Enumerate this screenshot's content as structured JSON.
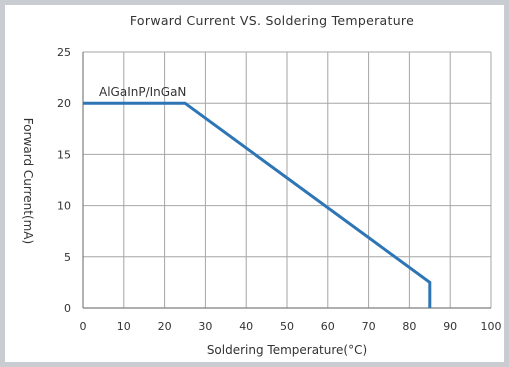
{
  "chart_data": {
    "type": "line",
    "title": "Forward Current VS. Soldering Temperature",
    "xlabel": "Soldering Temperature(°C)",
    "ylabel": "Forward Current(mA)",
    "xlim": [
      0,
      100
    ],
    "ylim": [
      0,
      25
    ],
    "xticks": [
      0,
      10,
      20,
      30,
      40,
      50,
      60,
      70,
      80,
      90,
      100
    ],
    "yticks": [
      0,
      5,
      10,
      15,
      20,
      25
    ],
    "grid": true,
    "line_color": "#2e75b6",
    "series": [
      {
        "name": "AlGaInP/InGaN",
        "x": [
          0,
          25,
          85,
          85
        ],
        "y": [
          20,
          20,
          2.5,
          0
        ]
      }
    ]
  }
}
